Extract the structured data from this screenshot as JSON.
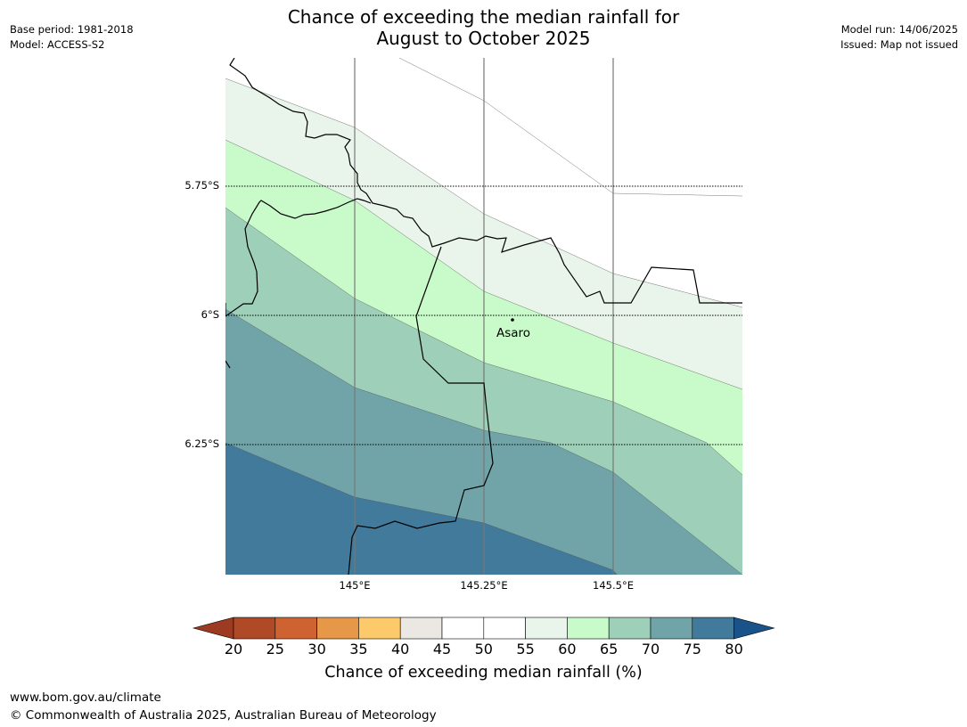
{
  "title": {
    "line1": "Chance of exceeding the median rainfall for",
    "line2": "August to October 2025"
  },
  "meta_left": {
    "base_period": "Base period: 1981-2018",
    "model": "Model: ACCESS-S2"
  },
  "meta_right": {
    "model_run": "Model run: 14/06/2025",
    "issued": "Issued: Map not issued"
  },
  "map": {
    "lat_labels": [
      "5.75°S",
      "6°S",
      "6.25°S"
    ],
    "lon_labels": [
      "145°E",
      "145.25°E",
      "145.5°E"
    ],
    "place": {
      "name": "Asaro",
      "lat": -6.01,
      "lon": 145.3
    },
    "zone_colors": {
      "c55_60": "#e9f5ea",
      "c60_65": "#c9fbca",
      "c65_70": "#9ecfb8",
      "c70_75": "#70a4a8",
      "c75_80": "#417a9a"
    }
  },
  "colorbar": {
    "ticks": [
      "20",
      "25",
      "30",
      "35",
      "40",
      "45",
      "50",
      "55",
      "60",
      "65",
      "70",
      "75",
      "80"
    ],
    "colors": [
      "#9c3a22",
      "#b04a26",
      "#ce6331",
      "#e69748",
      "#fdca6b",
      "#ebe8e3",
      "#ffffff",
      "#ffffff",
      "#e9f5ea",
      "#c9fbca",
      "#9ecfb8",
      "#70a4a8",
      "#417a9a",
      "#1a538a"
    ],
    "label": "Chance of exceeding median rainfall (%)"
  },
  "footer": {
    "url": "www.bom.gov.au/climate",
    "copyright": "© Commonwealth of Australia 2025, Australian Bureau of Meteorology"
  }
}
